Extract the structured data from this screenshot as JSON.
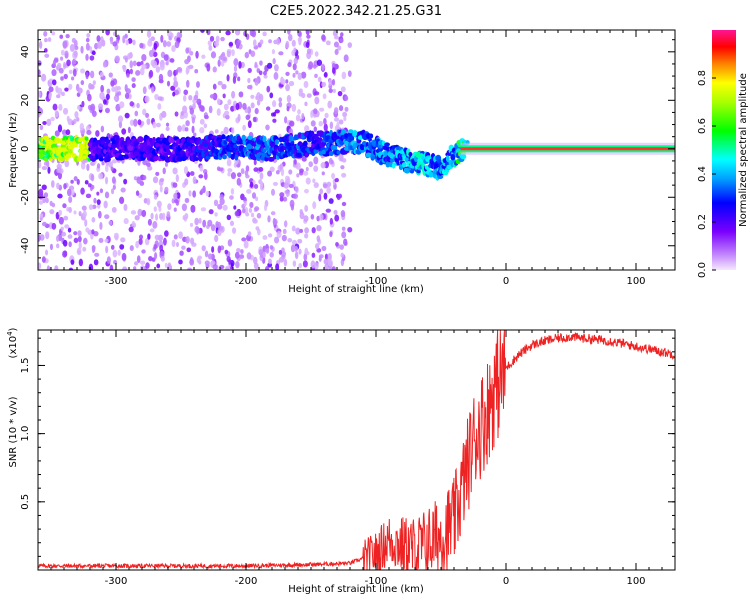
{
  "title": "C2E5.2022.342.21.25.G31",
  "colors": {
    "snr_line": "#ee2222",
    "spectrum_low": "#8a2be2",
    "spectrum_band": [
      "#ff00ff",
      "#0000ff",
      "#00ffff",
      "#00ff00",
      "#ffff00",
      "#ff0000",
      "#ff1493"
    ]
  },
  "chart_data": [
    {
      "type": "heatmap",
      "title": "C2E5.2022.342.21.25.G31",
      "xlabel": "Height of straight line (km)",
      "ylabel": "Frequency (Hz)",
      "xlim": [
        -360,
        130
      ],
      "ylim": [
        -50,
        49
      ],
      "x_ticks": [
        -300,
        -200,
        -100,
        0,
        100
      ],
      "x_tick_labels": [
        "-300",
        "-200",
        "-100",
        "0",
        "100"
      ],
      "y_ticks": [
        -40,
        -20,
        0,
        20,
        40
      ],
      "y_tick_labels": [
        "-40",
        "-20",
        "0",
        "20",
        "40"
      ],
      "colorbar": {
        "label": "Normalized spectral amplitude",
        "range": [
          0.0,
          1.0
        ],
        "ticks": [
          0.0,
          0.2,
          0.4,
          0.6,
          0.8
        ],
        "tick_labels": [
          "0.0",
          "0.2",
          "0.4",
          "0.6",
          "0.8"
        ]
      },
      "series": [
        {
          "values_description_points": [
            {
              "x": -320,
              "f": 0,
              "amp": 0.25
            },
            {
              "x": -250,
              "f": 0,
              "amp": 0.25
            },
            {
              "x": -200,
              "f": 1,
              "amp": 0.35
            },
            {
              "x": -180,
              "f": 0,
              "amp": 0.35
            },
            {
              "x": -150,
              "f": 2,
              "amp": 0.3
            },
            {
              "x": -110,
              "f": 3,
              "amp": 0.4
            },
            {
              "x": -90,
              "f": -3,
              "amp": 0.4
            },
            {
              "x": -70,
              "f": -6,
              "amp": 0.45
            },
            {
              "x": -50,
              "f": -8,
              "amp": 0.4
            },
            {
              "x": -40,
              "f": -3,
              "amp": 0.45
            },
            {
              "x": -30,
              "f": 0,
              "amp": 0.7
            },
            {
              "x": -10,
              "f": 1,
              "amp": 0.8
            },
            {
              "x": 0,
              "f": 0,
              "amp": 0.9
            },
            {
              "x": 60,
              "f": 0,
              "amp": 0.95
            },
            {
              "x": 130,
              "f": 0,
              "amp": 0.95
            }
          ]
        }
      ],
      "grid": false
    },
    {
      "type": "line",
      "xlabel": "Height of straight line (km)",
      "ylabel": "SNR (10 * v/v)",
      "y_multiplier": "(x10",
      "y_multiplier_exp": "4",
      "y_multiplier_close": ")",
      "xlim": [
        -360,
        130
      ],
      "ylim": [
        0,
        1.76
      ],
      "x_ticks": [
        -300,
        -200,
        -100,
        0,
        100
      ],
      "x_tick_labels": [
        "-300",
        "-200",
        "-100",
        "0",
        "100"
      ],
      "y_ticks": [
        0.5,
        1.0,
        1.5
      ],
      "y_tick_labels": [
        "0.5",
        "1.0",
        "1.5"
      ],
      "series": [
        {
          "x": [
            -360,
            -300,
            -200,
            -150,
            -120,
            -100,
            -90,
            -80,
            -70,
            -60,
            -50,
            -40,
            -35,
            -30,
            -25,
            -20,
            -15,
            -10,
            -5,
            0,
            10,
            20,
            30,
            40,
            50,
            60,
            70,
            80,
            90,
            100,
            110,
            120,
            130
          ],
          "values": [
            0.03,
            0.03,
            0.03,
            0.04,
            0.05,
            0.12,
            0.22,
            0.18,
            0.15,
            0.2,
            0.25,
            0.35,
            0.55,
            0.75,
            0.95,
            1.05,
            1.15,
            1.3,
            1.4,
            1.48,
            1.58,
            1.65,
            1.68,
            1.7,
            1.71,
            1.7,
            1.69,
            1.68,
            1.66,
            1.64,
            1.62,
            1.6,
            1.58
          ]
        }
      ],
      "grid": false
    }
  ]
}
